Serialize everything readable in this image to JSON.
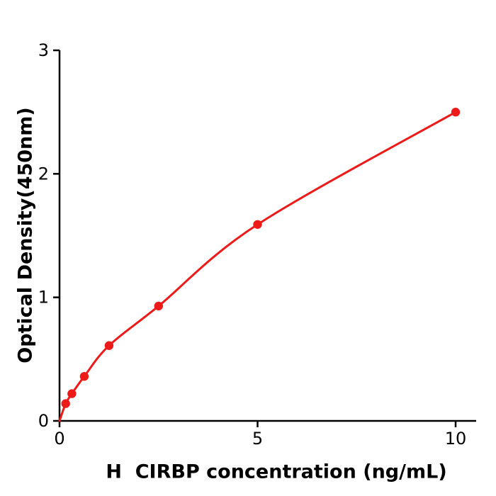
{
  "figure": {
    "background": "#ffffff"
  },
  "chart_data": {
    "type": "scatter",
    "title": "",
    "xlabel": "H  CIRBP concentration (ng/mL)",
    "ylabel": "Optical Density(450nm)",
    "x": [
      0.156,
      0.312,
      0.625,
      1.25,
      2.5,
      5,
      10
    ],
    "y": [
      0.14,
      0.22,
      0.36,
      0.61,
      0.93,
      1.59,
      2.5
    ],
    "curve_start": [
      0,
      0
    ],
    "xticks": [
      0,
      5,
      10
    ],
    "yticks": [
      0,
      1,
      2,
      3
    ],
    "xlim": [
      0,
      10.5
    ],
    "ylim": [
      0,
      3
    ],
    "grid": false,
    "legend": null,
    "line_color": "#ed1a1a",
    "marker_color": "#ed1a1a",
    "axis_color": "#000000",
    "tick_label_color": "#000000"
  }
}
